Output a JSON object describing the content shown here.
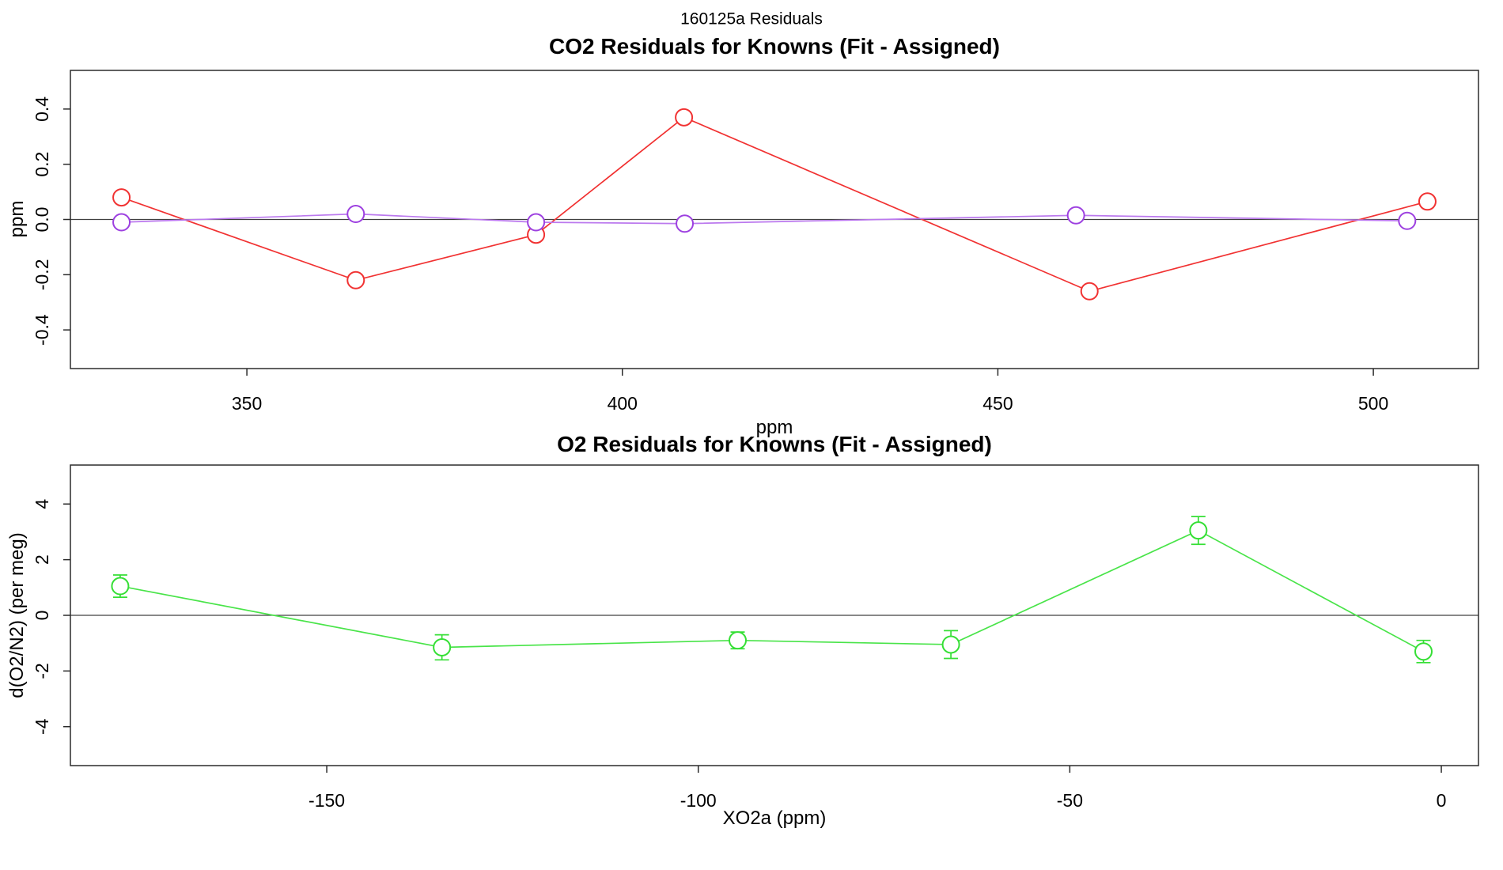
{
  "page": {
    "title": "160125a  Residuals",
    "background": "#ffffff"
  },
  "chart_data": [
    {
      "type": "line",
      "title": "CO2 Residuals for Knowns (Fit - Assigned)",
      "xlabel": "ppm",
      "ylabel": "ppm",
      "xlim": [
        326.5,
        514.0
      ],
      "ylim": [
        -0.54,
        0.54
      ],
      "xticks": [
        350,
        400,
        450,
        500
      ],
      "xtick_labels": [
        "350",
        "400",
        "450",
        "500"
      ],
      "yticks": [
        -0.4,
        -0.2,
        0,
        0.2,
        0.4
      ],
      "ytick_labels": [
        "-0.4",
        "-0.2",
        "0.0",
        "0.2",
        "0.4"
      ],
      "zero_line": true,
      "grid": false,
      "legend": "none",
      "series": [
        {
          "name": "co2-residuals-red",
          "marker": "open-circle",
          "color": "#f13232",
          "line_color": "#f13232",
          "x": [
            333.3,
            364.5,
            388.5,
            408.2,
            462.2,
            507.2
          ],
          "y": [
            0.08,
            -0.22,
            -0.055,
            0.37,
            -0.26,
            0.065
          ]
        },
        {
          "name": "co2-residuals-purple",
          "marker": "open-circle",
          "color": "#9d40e0",
          "line_color": "#bb79ee",
          "x": [
            333.3,
            364.5,
            388.5,
            408.3,
            460.4,
            504.5
          ],
          "y": [
            -0.01,
            0.02,
            -0.01,
            -0.015,
            0.015,
            -0.005
          ]
        }
      ]
    },
    {
      "type": "line",
      "title": "O2 Residuals for Knowns (Fit - Assigned)",
      "xlabel": "XO2a (ppm)",
      "ylabel": "d(O2/N2) (per meg)",
      "xlim": [
        -184.5,
        5.0
      ],
      "ylim": [
        -5.4,
        5.4
      ],
      "xticks": [
        -150,
        -100,
        -50,
        0
      ],
      "xtick_labels": [
        "-150",
        "-100",
        "-50",
        "0"
      ],
      "yticks": [
        -4,
        -2,
        0,
        2,
        4
      ],
      "ytick_labels": [
        "-4",
        "-2",
        "0",
        "2",
        "4"
      ],
      "zero_line": true,
      "grid": false,
      "legend": "none",
      "series": [
        {
          "name": "o2-residuals-green",
          "marker": "open-circle",
          "color": "#35df35",
          "line_color": "#49e449",
          "x": [
            -177.8,
            -134.5,
            -94.7,
            -66.0,
            -32.7,
            -2.4
          ],
          "y": [
            1.05,
            -1.15,
            -0.9,
            -1.05,
            3.05,
            -1.3
          ],
          "yerr": [
            0.4,
            0.45,
            0.3,
            0.5,
            0.5,
            0.4
          ]
        }
      ]
    }
  ]
}
